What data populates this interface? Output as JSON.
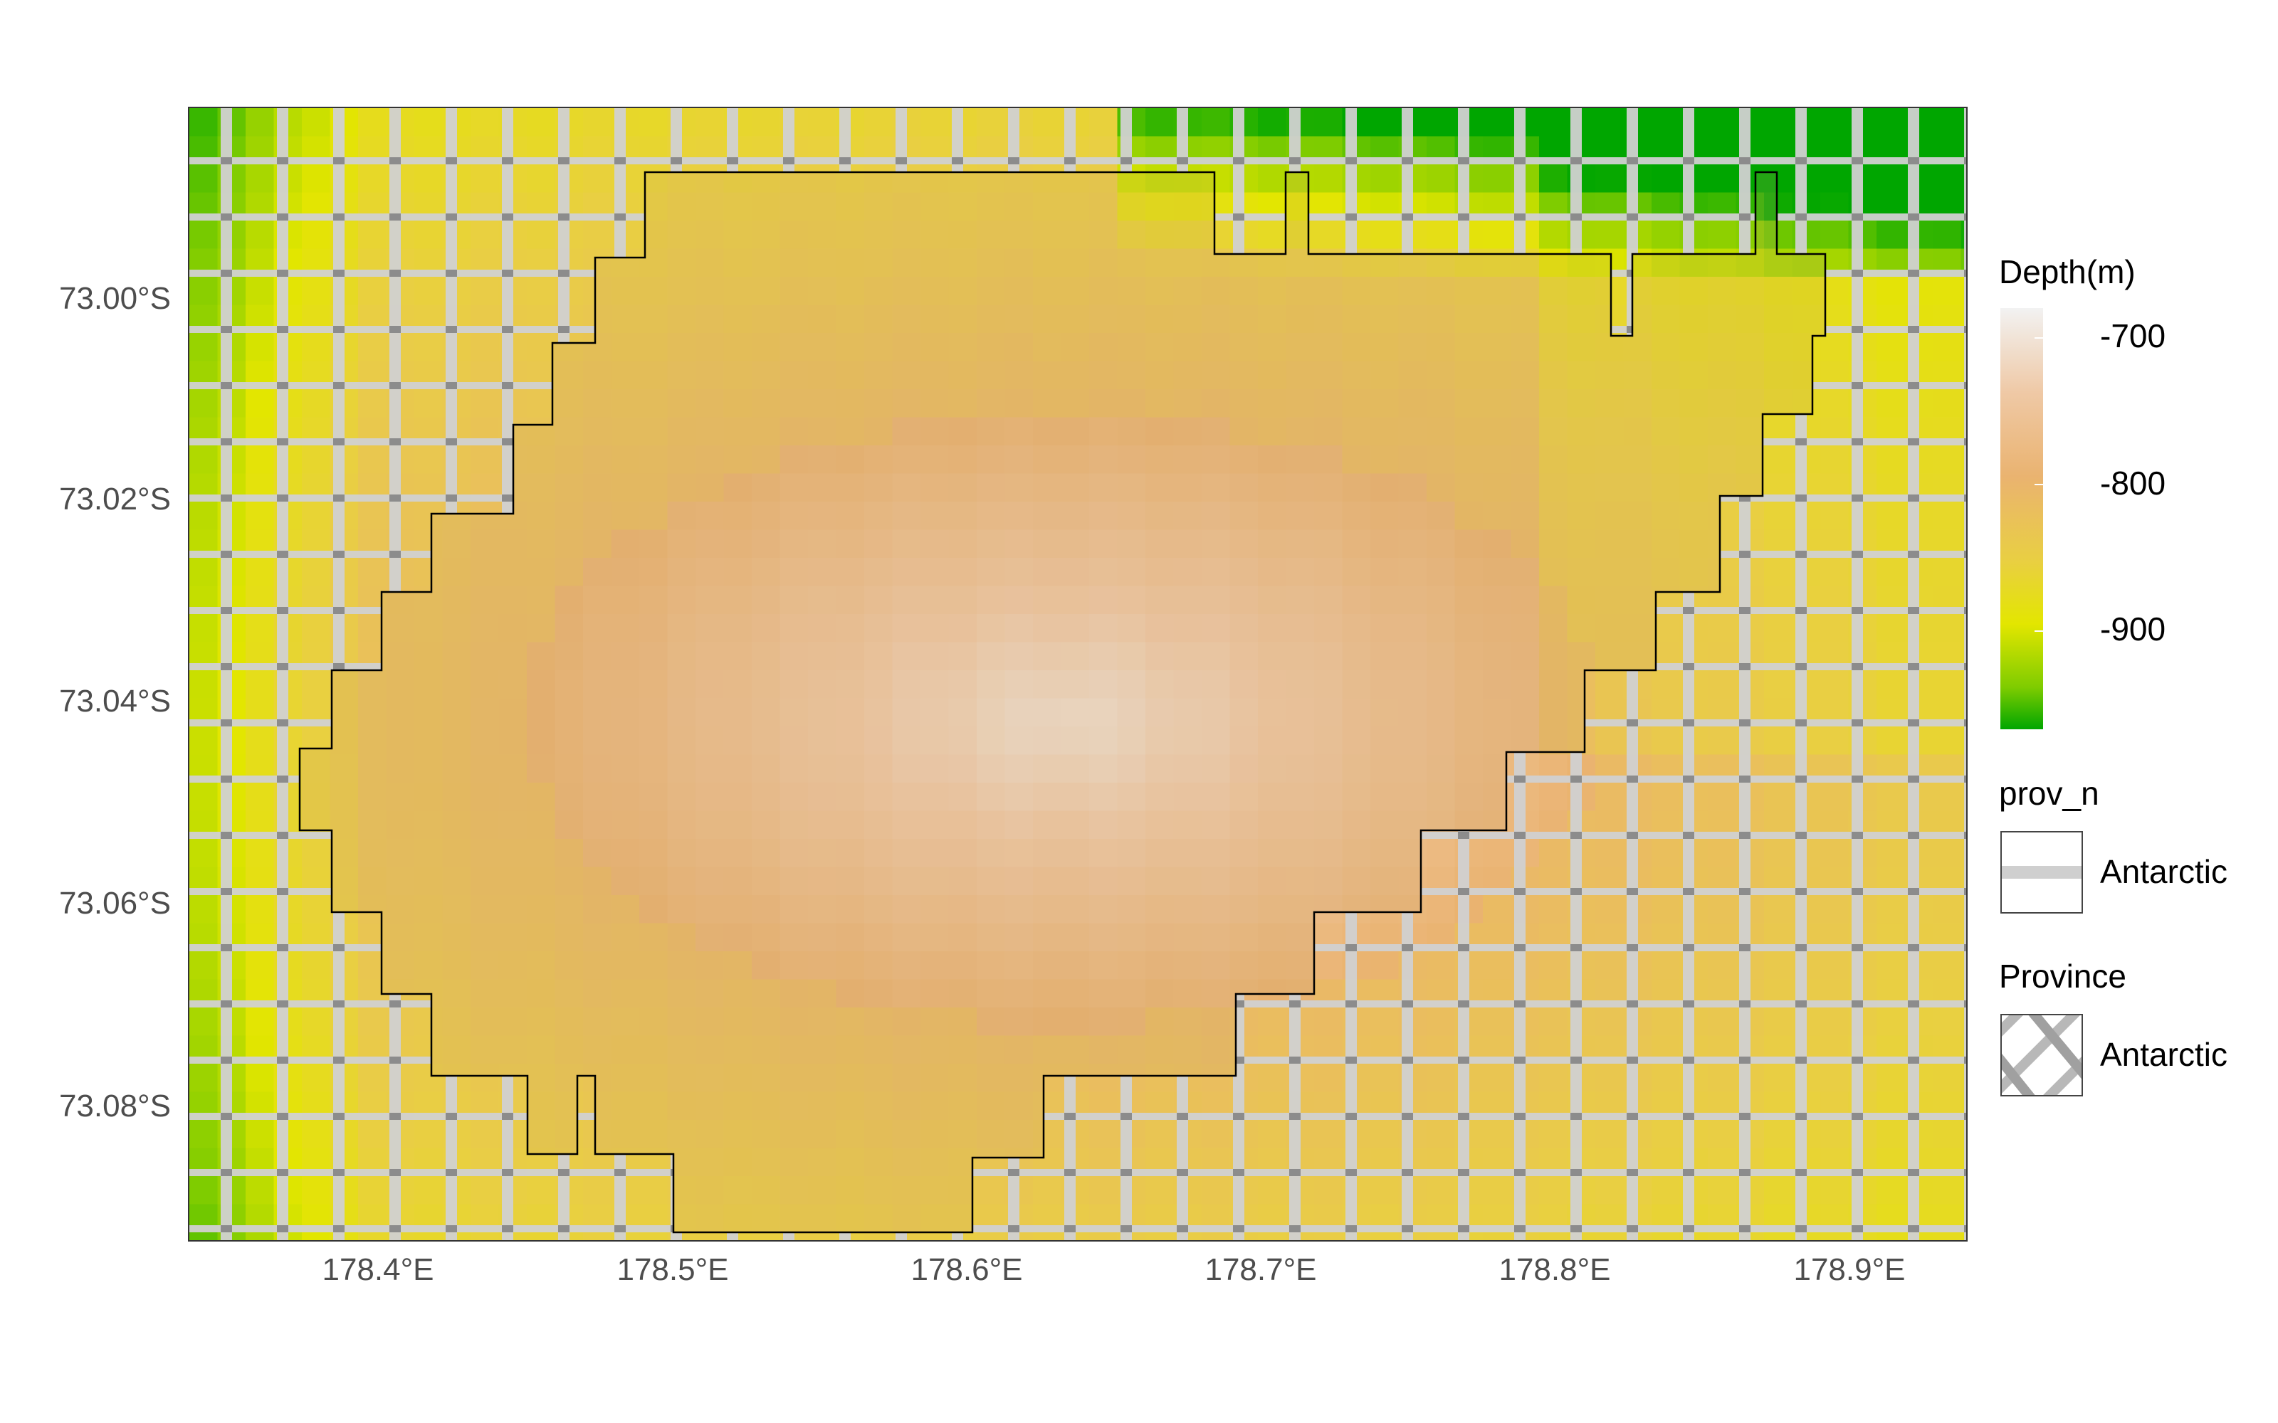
{
  "map": {
    "x_axis": {
      "ticks": [
        "178.4°E",
        "178.5°E",
        "178.6°E",
        "178.7°E",
        "178.8°E",
        "178.9°E"
      ],
      "tick_values": [
        178.4,
        178.5,
        178.6,
        178.7,
        178.8,
        178.9
      ],
      "range": [
        178.335,
        178.94
      ]
    },
    "y_axis": {
      "ticks": [
        "73.00°S",
        "73.02°S",
        "73.04°S",
        "73.06°S",
        "73.08°S"
      ],
      "tick_values": [
        -73.0,
        -73.02,
        -73.04,
        -73.06,
        -73.08
      ],
      "range": [
        -73.0945,
        -72.982
      ]
    },
    "background_grid": "hatched crosshatch overlay",
    "colors": {
      "deep": "#00a600",
      "mid_deep": "#e3e600",
      "mid": "#eab370",
      "shallow": "#f2f2f2",
      "outline": "#000000",
      "hatch_light": "#d9d9d9",
      "hatch_dark": "#a6a6a6"
    }
  },
  "legend": {
    "depth": {
      "title": "Depth(m)",
      "labels": [
        "-700",
        "-800",
        "-900"
      ],
      "values": [
        -700,
        -800,
        -900
      ],
      "range": [
        -966,
        -679
      ]
    },
    "prov_n": {
      "title": "prov_n",
      "label": "Antarctic"
    },
    "province": {
      "title": "Province",
      "label": "Antarctic"
    }
  }
}
